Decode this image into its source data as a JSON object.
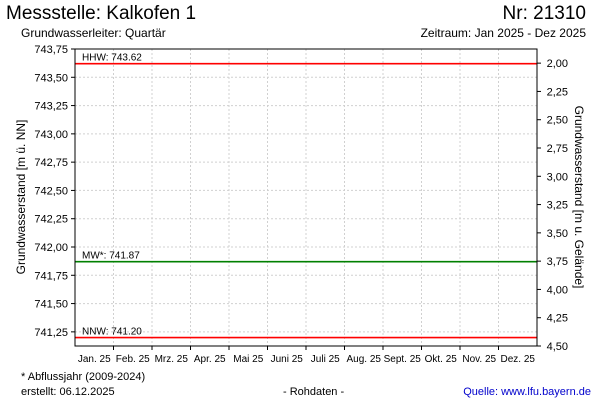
{
  "header": {
    "title": "Messstelle: Kalkofen 1",
    "station_number": "Nr: 21310",
    "subtitle": "Grundwasserleiter: Quartär",
    "period": "Zeitraum: Jan 2025 - Dez 2025"
  },
  "footer": {
    "footnote": "* Abflussjahr (2009-2024)",
    "created": "erstellt:  06.12.2025",
    "raw_data": "- Rohdaten -",
    "source": "Quelle: www.lfu.bayern.de"
  },
  "chart_data": {
    "type": "line",
    "ylabel_left": "Grundwasserstand [m ü. NN]",
    "ylabel_right": "Grundwasserstand [m u. Gelände]",
    "categories": [
      "Jan. 25",
      "Feb. 25",
      "Mrz. 25",
      "Apr. 25",
      "Mai 25",
      "Juni 25",
      "Juli 25",
      "Aug. 25",
      "Sept. 25",
      "Okt. 25",
      "Nov. 25",
      "Dez. 25"
    ],
    "ylim_left": [
      741.125,
      743.75
    ],
    "ylim_right": [
      4.5,
      1.875
    ],
    "left_ticks": [
      "743,75",
      "743,50",
      "743,25",
      "743,00",
      "742,75",
      "742,50",
      "742,25",
      "742,00",
      "741,75",
      "741,50",
      "741,25"
    ],
    "left_tick_values": [
      743.75,
      743.5,
      743.25,
      743.0,
      742.75,
      742.5,
      742.25,
      742.0,
      741.75,
      741.5,
      741.25
    ],
    "right_ticks": [
      "2,00",
      "2,25",
      "2,50",
      "2,75",
      "3,00",
      "3,25",
      "3,50",
      "3,75",
      "4,00",
      "4,25",
      "4,50"
    ],
    "right_tick_values": [
      2.0,
      2.25,
      2.5,
      2.75,
      3.0,
      3.25,
      3.5,
      3.75,
      4.0,
      4.25,
      4.5
    ],
    "grid": true,
    "reference_lines": [
      {
        "label": "HHW: 743.62",
        "value": 743.62,
        "color": "#ff0000"
      },
      {
        "label": "MW*: 741.87",
        "value": 741.87,
        "color": "#008000"
      },
      {
        "label": "NNW: 741.20",
        "value": 741.2,
        "color": "#ff0000"
      }
    ]
  }
}
